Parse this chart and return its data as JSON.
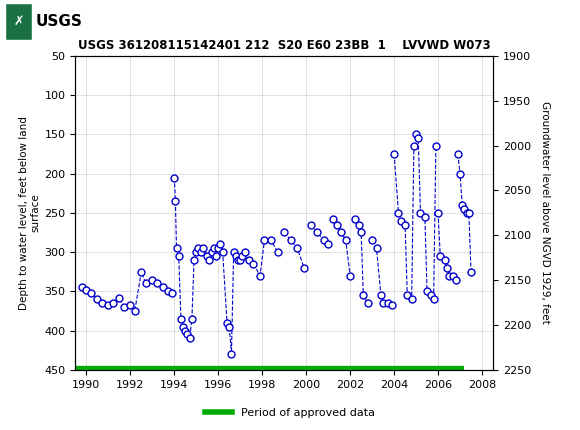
{
  "title": "USGS 361208115142401 212  S20 E60 23BB  1    LVVWD W073",
  "ylabel_left": "Depth to water level, feet below land\nsurface",
  "ylabel_right": "Groundwater level above NGVD 1929, feet",
  "ylim_left": [
    50,
    450
  ],
  "xlim": [
    1989.5,
    2008.5
  ],
  "xticks": [
    1990,
    1992,
    1994,
    1996,
    1998,
    2000,
    2002,
    2004,
    2006,
    2008
  ],
  "yticks_left": [
    50,
    100,
    150,
    200,
    250,
    300,
    350,
    400,
    450
  ],
  "yticks_right": [
    1900,
    1950,
    2000,
    2050,
    2100,
    2150,
    2200,
    2250
  ],
  "header_color": "#1a7040",
  "data_color": "#0000cc",
  "approved_color": "#00aa00",
  "legend_label": "Period of approved data",
  "groups_x": [
    [
      1989.8,
      1990.0,
      1990.2,
      1990.5,
      1990.7,
      1991.0,
      1991.2,
      1991.5,
      1991.7,
      1992.0,
      1992.2,
      1992.5,
      1992.7
    ],
    [
      1993.0,
      1993.2,
      1993.5,
      1993.7,
      1993.9
    ],
    [
      1994.0,
      1994.05,
      1994.1,
      1994.2,
      1994.3,
      1994.4,
      1994.5,
      1994.6,
      1994.7,
      1994.8,
      1994.9
    ],
    [
      1995.0,
      1995.1,
      1995.2,
      1995.3,
      1995.5,
      1995.6,
      1995.7,
      1995.8,
      1995.9
    ],
    [
      1996.0,
      1996.1,
      1996.2,
      1996.4,
      1996.5,
      1996.6,
      1996.7,
      1996.8
    ],
    [
      1996.9,
      1997.0,
      1997.1,
      1997.2,
      1997.4
    ],
    [
      1997.6,
      1997.9,
      1998.1,
      1998.4,
      1998.7
    ],
    [
      1999.0,
      1999.3,
      1999.6,
      1999.9
    ],
    [
      2000.2,
      2000.5,
      2000.8,
      2001.0
    ],
    [
      2001.2,
      2001.4,
      2001.6,
      2001.8,
      2002.0
    ],
    [
      2002.2,
      2002.4,
      2002.5,
      2002.6,
      2002.8
    ],
    [
      2003.0,
      2003.2,
      2003.4,
      2003.5,
      2003.7,
      2003.9
    ],
    [
      2004.0,
      2004.2,
      2004.3,
      2004.5,
      2004.6,
      2004.8,
      2004.9
    ],
    [
      2005.0,
      2005.1,
      2005.2,
      2005.4,
      2005.5,
      2005.7,
      2005.8,
      2005.9
    ],
    [
      2006.0,
      2006.1,
      2006.3,
      2006.4,
      2006.5,
      2006.7,
      2006.8
    ],
    [
      2006.9,
      2007.0,
      2007.1,
      2007.2,
      2007.3,
      2007.4,
      2007.5
    ]
  ],
  "groups_y": [
    [
      345,
      348,
      352,
      360,
      365,
      368,
      365,
      358,
      370,
      368,
      375,
      325,
      340
    ],
    [
      335,
      340,
      345,
      350,
      352
    ],
    [
      205,
      235,
      295,
      305,
      385,
      395,
      400,
      405,
      410,
      385,
      310
    ],
    [
      300,
      295,
      300,
      295,
      305,
      310,
      300,
      295,
      305
    ],
    [
      295,
      290,
      300,
      390,
      395,
      430,
      300,
      305
    ],
    [
      310,
      310,
      305,
      300,
      310
    ],
    [
      315,
      330,
      285,
      285,
      300
    ],
    [
      275,
      285,
      295,
      320
    ],
    [
      265,
      275,
      285,
      290
    ],
    [
      258,
      265,
      275,
      285,
      330
    ],
    [
      258,
      265,
      275,
      355,
      365
    ],
    [
      285,
      295,
      355,
      365,
      365,
      368
    ],
    [
      175,
      250,
      260,
      265,
      355,
      360,
      165
    ],
    [
      150,
      155,
      250,
      255,
      350,
      355,
      360,
      165
    ],
    [
      250,
      305,
      310,
      320,
      330,
      330,
      335
    ],
    [
      175,
      200,
      240,
      245,
      250,
      250,
      325
    ]
  ],
  "approved_xmin": 1989.5,
  "approved_xmax": 2007.2
}
